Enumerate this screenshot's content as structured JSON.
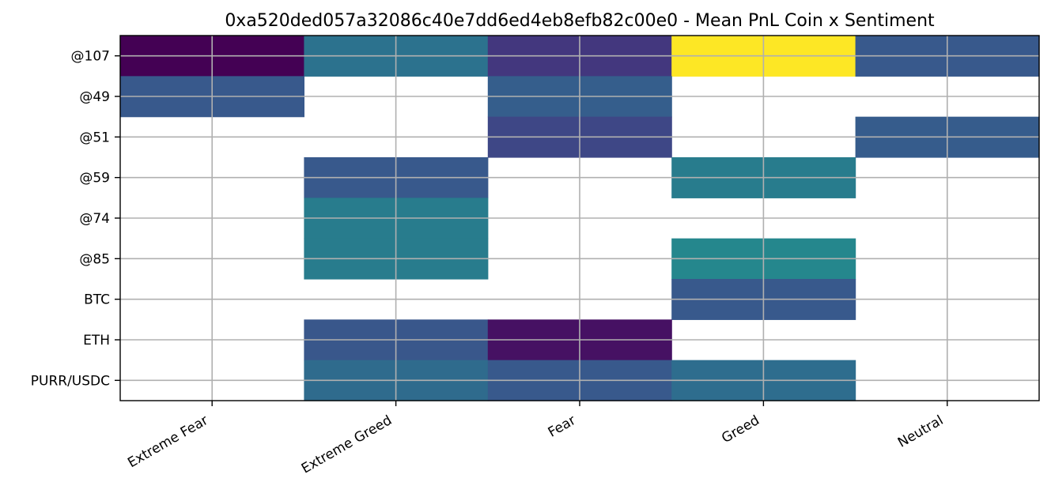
{
  "chart_data": {
    "type": "heatmap",
    "title": "0xa520ded057a32086c40e7dd6ed4eb8efb82c00e0 - Mean PnL Coin x Sentiment",
    "xlabel": "",
    "ylabel": "",
    "x_categories": [
      "Extreme Fear",
      "Extreme Greed",
      "Fear",
      "Greed",
      "Neutral"
    ],
    "y_categories": [
      "@107",
      "@49",
      "@51",
      "@59",
      "@74",
      "@85",
      "BTC",
      "ETH",
      "PURR/USDC"
    ],
    "values": [
      [
        0.0,
        0.38,
        0.18,
        1.0,
        0.28
      ],
      [
        0.28,
        null,
        0.3,
        null,
        null
      ],
      [
        null,
        null,
        0.22,
        null,
        0.29
      ],
      [
        null,
        0.28,
        null,
        0.42,
        null
      ],
      [
        null,
        0.42,
        null,
        null,
        null
      ],
      [
        null,
        0.42,
        null,
        0.46,
        null
      ],
      [
        null,
        null,
        null,
        0.28,
        null
      ],
      [
        null,
        0.27,
        0.06,
        null,
        null
      ],
      [
        null,
        0.35,
        0.28,
        0.36,
        null
      ]
    ],
    "colormap": "viridis",
    "color_range": [
      0,
      1
    ],
    "missing_color": "#ffffff",
    "grid": true
  }
}
